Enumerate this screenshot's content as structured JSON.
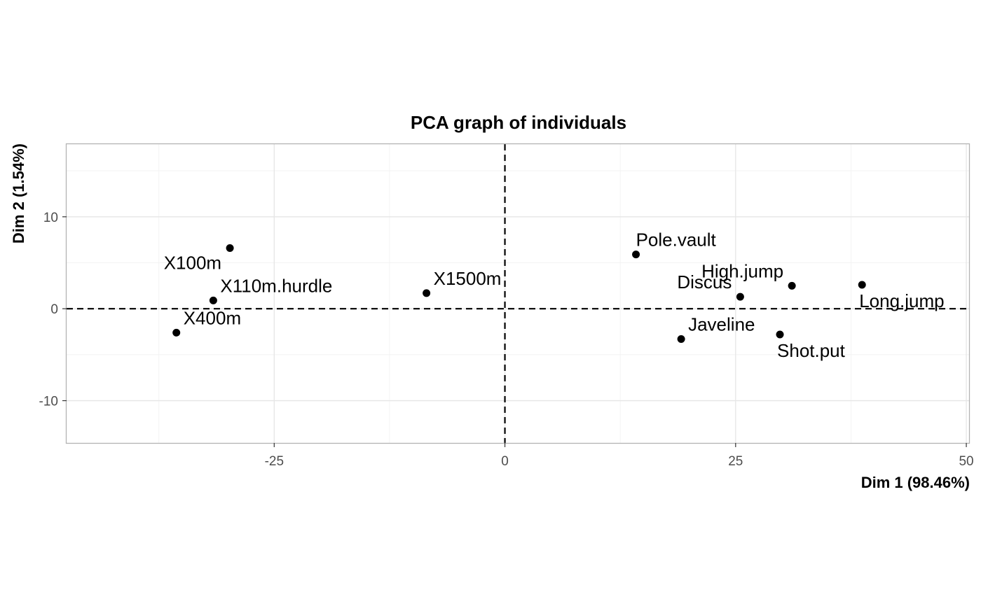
{
  "chart_data": {
    "type": "scatter",
    "title": "PCA graph of individuals",
    "xlabel": "Dim 1 (98.46%)",
    "ylabel": "Dim 2 (1.54%)",
    "xlim": [
      -47.5,
      50.3
    ],
    "ylim": [
      -14.6,
      17.9
    ],
    "x_ticks": [
      -25,
      0,
      25,
      50
    ],
    "x_tick_labels": [
      "-25",
      "0",
      "25",
      "50"
    ],
    "y_ticks": [
      -10,
      0,
      10
    ],
    "y_tick_labels": [
      "-10",
      "0",
      "10"
    ],
    "x_minor": [
      -37.5,
      -12.5,
      12.5,
      37.5
    ],
    "y_minor": [
      -15,
      -5,
      5,
      15
    ],
    "grid": true,
    "reference_lines": {
      "x": 0,
      "y": 0,
      "style": "dashed"
    },
    "points": [
      {
        "label": "X100m",
        "x": -29.8,
        "y": 6.6,
        "label_pos": "below-left"
      },
      {
        "label": "X110m.hurdle",
        "x": -31.6,
        "y": 0.9,
        "label_pos": "upper-right"
      },
      {
        "label": "X400m",
        "x": -35.6,
        "y": -2.6,
        "label_pos": "upper-right"
      },
      {
        "label": "X1500m",
        "x": -8.5,
        "y": 1.7,
        "label_pos": "upper-right"
      },
      {
        "label": "Pole.vault",
        "x": 14.2,
        "y": 5.9,
        "label_pos": "above"
      },
      {
        "label": "Discus",
        "x": 25.5,
        "y": 1.3,
        "label_pos": "upper-left"
      },
      {
        "label": "High.jump",
        "x": 31.1,
        "y": 2.5,
        "label_pos": "upper-left"
      },
      {
        "label": "Long.jump",
        "x": 38.7,
        "y": 2.6,
        "label_pos": "below-right"
      },
      {
        "label": "Javeline",
        "x": 19.1,
        "y": -3.3,
        "label_pos": "upper-right"
      },
      {
        "label": "Shot.put",
        "x": 29.8,
        "y": -2.8,
        "label_pos": "below-right"
      }
    ]
  }
}
